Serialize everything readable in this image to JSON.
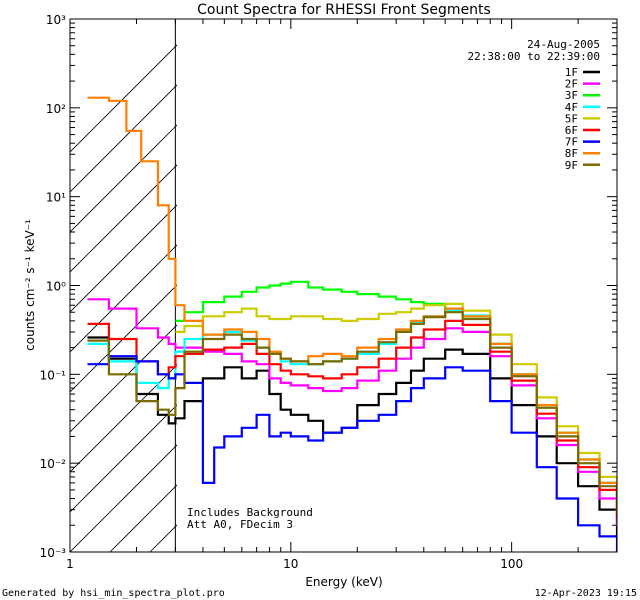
{
  "footer": {
    "generated_by": "Generated by hsi_min_spectra_plot.pro",
    "timestamp": "12-Apr-2023 19:15"
  },
  "chart_data": {
    "type": "line",
    "title": "Count Spectra for RHESSI Front Segments",
    "xlabel": "Energy (keV)",
    "ylabel": "counts cm⁻² s⁻¹ keV⁻¹",
    "xscale": "log",
    "yscale": "log",
    "xlim": [
      1,
      300
    ],
    "ylim": [
      0.001,
      1000
    ],
    "x_ticks": [
      {
        "value": 1,
        "label": "1"
      },
      {
        "value": 10,
        "label": "10"
      },
      {
        "value": 100,
        "label": "100"
      }
    ],
    "y_ticks": [
      {
        "value": 0.001,
        "label": "10⁻³"
      },
      {
        "value": 0.01,
        "label": "10⁻²"
      },
      {
        "value": 0.1,
        "label": "10⁻¹"
      },
      {
        "value": 1,
        "label": "10⁰"
      },
      {
        "value": 10,
        "label": "10¹"
      },
      {
        "value": 100,
        "label": "10²"
      },
      {
        "value": 1000,
        "label": "10³"
      }
    ],
    "date": "24-Aug-2005",
    "time_range": "22:38:00 to 22:39:00",
    "hatched_region": [
      1,
      3
    ],
    "annotations": [
      "Includes Background",
      "Att A0, FDecim 3"
    ],
    "legend_position": "top-right",
    "series": [
      {
        "name": "1F",
        "color": "#000000",
        "x": [
          1.2,
          1.5,
          2,
          2.5,
          2.8,
          3.0,
          3.3,
          4,
          5,
          6,
          7,
          8,
          9,
          10,
          12,
          14,
          17,
          20,
          25,
          30,
          35,
          40,
          50,
          60,
          80,
          100,
          130,
          160,
          200,
          250,
          300
        ],
        "y": [
          0.26,
          0.15,
          0.06,
          0.035,
          0.028,
          0.032,
          0.05,
          0.09,
          0.12,
          0.09,
          0.11,
          0.06,
          0.04,
          0.035,
          0.03,
          0.022,
          0.025,
          0.045,
          0.06,
          0.08,
          0.11,
          0.15,
          0.19,
          0.17,
          0.09,
          0.045,
          0.02,
          0.01,
          0.0055,
          0.003,
          0.0015
        ]
      },
      {
        "name": "2F",
        "color": "#ff00ff",
        "x": [
          1.2,
          1.5,
          2,
          2.5,
          2.8,
          3.0,
          3.3,
          4,
          5,
          6,
          7,
          8,
          9,
          10,
          12,
          14,
          17,
          20,
          25,
          30,
          35,
          40,
          50,
          60,
          80,
          100,
          130,
          160,
          200,
          250,
          300
        ],
        "y": [
          0.7,
          0.55,
          0.33,
          0.26,
          0.22,
          0.2,
          0.2,
          0.18,
          0.17,
          0.14,
          0.13,
          0.09,
          0.08,
          0.075,
          0.07,
          0.065,
          0.07,
          0.085,
          0.11,
          0.15,
          0.2,
          0.25,
          0.33,
          0.3,
          0.16,
          0.075,
          0.032,
          0.016,
          0.008,
          0.004,
          0.002
        ]
      },
      {
        "name": "3F",
        "color": "#00ff00",
        "x": [
          3.0,
          3.3,
          4,
          5,
          6,
          7,
          8,
          9,
          10,
          12,
          14,
          17,
          20,
          25,
          30,
          35,
          40,
          50,
          60,
          80,
          100,
          130,
          160,
          200,
          250,
          300
        ],
        "y": [
          0.4,
          0.5,
          0.65,
          0.75,
          0.85,
          0.95,
          1.0,
          1.05,
          1.1,
          0.95,
          0.9,
          0.85,
          0.8,
          0.75,
          0.7,
          0.65,
          0.62,
          0.55,
          0.45,
          0.22,
          0.1,
          0.045,
          0.022,
          0.011,
          0.006,
          0.003
        ]
      },
      {
        "name": "4F",
        "color": "#00ffff",
        "x": [
          1.2,
          1.5,
          2,
          2.5,
          2.8,
          3.0,
          3.3,
          4,
          5,
          6,
          7,
          8,
          9,
          10,
          12,
          14,
          17,
          20,
          25,
          30,
          35,
          40,
          50,
          60,
          80,
          100,
          130,
          160,
          200,
          250,
          300
        ],
        "y": [
          0.22,
          0.14,
          0.08,
          0.07,
          0.09,
          0.18,
          0.25,
          0.28,
          0.3,
          0.24,
          0.2,
          0.17,
          0.14,
          0.13,
          0.13,
          0.14,
          0.15,
          0.17,
          0.22,
          0.3,
          0.38,
          0.45,
          0.52,
          0.46,
          0.22,
          0.1,
          0.045,
          0.022,
          0.011,
          0.006,
          0.003
        ]
      },
      {
        "name": "5F",
        "color": "#cccc00",
        "x": [
          3.0,
          3.3,
          4,
          5,
          6,
          7,
          8,
          9,
          10,
          12,
          14,
          17,
          20,
          25,
          30,
          35,
          40,
          50,
          60,
          80,
          100,
          130,
          160,
          200,
          250,
          300
        ],
        "y": [
          0.3,
          0.35,
          0.45,
          0.5,
          0.55,
          0.45,
          0.42,
          0.42,
          0.45,
          0.45,
          0.42,
          0.4,
          0.42,
          0.48,
          0.5,
          0.55,
          0.6,
          0.62,
          0.52,
          0.28,
          0.13,
          0.055,
          0.026,
          0.013,
          0.007,
          0.003
        ]
      },
      {
        "name": "6F",
        "color": "#ff0000",
        "x": [
          1.2,
          1.5,
          2,
          2.5,
          2.8,
          3.0,
          3.3,
          4,
          5,
          6,
          7,
          8,
          9,
          10,
          12,
          14,
          17,
          20,
          25,
          30,
          35,
          40,
          50,
          60,
          80,
          100,
          130,
          160,
          200,
          250,
          300
        ],
        "y": [
          0.37,
          0.25,
          0.14,
          0.1,
          0.12,
          0.16,
          0.17,
          0.19,
          0.2,
          0.22,
          0.17,
          0.13,
          0.11,
          0.1,
          0.095,
          0.09,
          0.1,
          0.12,
          0.15,
          0.2,
          0.26,
          0.32,
          0.4,
          0.36,
          0.18,
          0.085,
          0.036,
          0.018,
          0.009,
          0.005,
          0.0025
        ]
      },
      {
        "name": "7F",
        "color": "#0000ff",
        "x": [
          1.2,
          1.5,
          2,
          2.5,
          2.8,
          3.0,
          3.3,
          4,
          4.5,
          5,
          6,
          7,
          8,
          9,
          10,
          12,
          14,
          17,
          20,
          25,
          30,
          35,
          40,
          50,
          60,
          80,
          100,
          130,
          160,
          200,
          250,
          300
        ],
        "y": [
          0.13,
          0.16,
          0.14,
          0.1,
          0.09,
          0.1,
          0.08,
          0.006,
          0.015,
          0.02,
          0.025,
          0.035,
          0.02,
          0.022,
          0.02,
          0.018,
          0.022,
          0.025,
          0.03,
          0.035,
          0.05,
          0.07,
          0.09,
          0.12,
          0.11,
          0.05,
          0.022,
          0.009,
          0.004,
          0.002,
          0.0015,
          0.001
        ]
      },
      {
        "name": "8F",
        "color": "#ff8000",
        "x": [
          1.2,
          1.5,
          1.8,
          2.1,
          2.5,
          2.8,
          3.0,
          3.3,
          4,
          5,
          6,
          7,
          8,
          9,
          10,
          12,
          14,
          17,
          20,
          25,
          30,
          35,
          40,
          50,
          60,
          80,
          100,
          130,
          160,
          200,
          250,
          300
        ],
        "y": [
          130,
          120,
          55,
          25,
          8,
          2,
          0.6,
          0.4,
          0.28,
          0.32,
          0.3,
          0.25,
          0.18,
          0.15,
          0.14,
          0.16,
          0.17,
          0.16,
          0.2,
          0.25,
          0.32,
          0.4,
          0.45,
          0.55,
          0.45,
          0.22,
          0.1,
          0.045,
          0.022,
          0.011,
          0.006,
          0.003
        ]
      },
      {
        "name": "9F",
        "color": "#7a6a00",
        "x": [
          1.2,
          1.5,
          2,
          2.5,
          2.8,
          3.0,
          3.3,
          4,
          5,
          6,
          7,
          8,
          9,
          10,
          12,
          14,
          17,
          20,
          25,
          30,
          35,
          40,
          50,
          60,
          80,
          100,
          130,
          160,
          200,
          250,
          300
        ],
        "y": [
          0.24,
          0.1,
          0.05,
          0.04,
          0.035,
          0.07,
          0.18,
          0.25,
          0.28,
          0.25,
          0.2,
          0.17,
          0.15,
          0.14,
          0.13,
          0.14,
          0.15,
          0.18,
          0.23,
          0.3,
          0.37,
          0.44,
          0.5,
          0.42,
          0.2,
          0.095,
          0.042,
          0.02,
          0.01,
          0.0055,
          0.0028
        ]
      }
    ]
  }
}
